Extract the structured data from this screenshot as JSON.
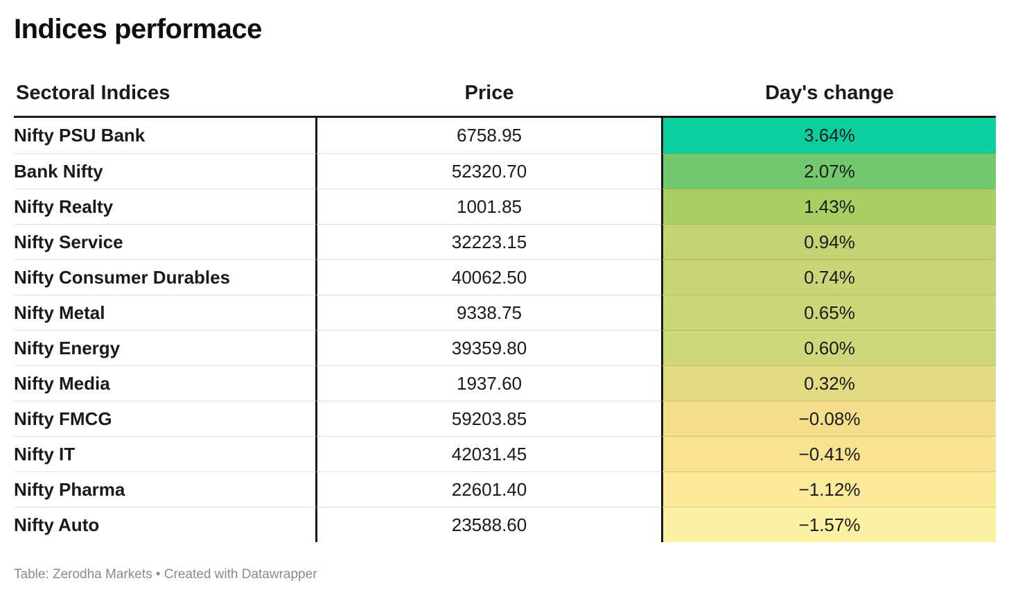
{
  "title": "Indices performace",
  "columns": {
    "sector": "Sectoral Indices",
    "price": "Price",
    "change": "Day's change"
  },
  "rows": [
    {
      "name": "Nifty PSU Bank",
      "price": "6758.95",
      "change": "3.64%",
      "color": "#0ccfa0"
    },
    {
      "name": "Bank Nifty",
      "price": "52320.70",
      "change": "2.07%",
      "color": "#74c86e"
    },
    {
      "name": "Nifty Realty",
      "price": "1001.85",
      "change": "1.43%",
      "color": "#a9cf62"
    },
    {
      "name": "Nifty Service",
      "price": "32223.15",
      "change": "0.94%",
      "color": "#c3d373"
    },
    {
      "name": "Nifty Consumer Durables",
      "price": "40062.50",
      "change": "0.74%",
      "color": "#c9d577"
    },
    {
      "name": "Nifty Metal",
      "price": "9338.75",
      "change": "0.65%",
      "color": "#cdd679"
    },
    {
      "name": "Nifty Energy",
      "price": "39359.80",
      "change": "0.60%",
      "color": "#cfd77b"
    },
    {
      "name": "Nifty Media",
      "price": "1937.60",
      "change": "0.32%",
      "color": "#e2db84"
    },
    {
      "name": "Nifty FMCG",
      "price": "59203.85",
      "change": "−0.08%",
      "color": "#f3de8b"
    },
    {
      "name": "Nifty IT",
      "price": "42031.45",
      "change": "−0.41%",
      "color": "#f7e391"
    },
    {
      "name": "Nifty Pharma",
      "price": "22601.40",
      "change": "−1.12%",
      "color": "#faea9a"
    },
    {
      "name": "Nifty Auto",
      "price": "23588.60",
      "change": "−1.57%",
      "color": "#fcf1a2"
    }
  ],
  "footer": "Table: Zerodha Markets • Created with Datawrapper",
  "colors": {
    "header_border": "#191919",
    "row_divider": "#e2e2e2",
    "footer_text": "#8a8a8a",
    "scale_max_positive": "#0ccfa0",
    "scale_min_negative": "#fcf1a2"
  },
  "chart_data": {
    "type": "table",
    "title": "Indices performace",
    "categories": [
      "Nifty PSU Bank",
      "Bank Nifty",
      "Nifty Realty",
      "Nifty Service",
      "Nifty Consumer Durables",
      "Nifty Metal",
      "Nifty Energy",
      "Nifty Media",
      "Nifty FMCG",
      "Nifty IT",
      "Nifty Pharma",
      "Nifty Auto"
    ],
    "series": [
      {
        "name": "Price",
        "values": [
          6758.95,
          52320.7,
          1001.85,
          32223.15,
          40062.5,
          9338.75,
          39359.8,
          1937.6,
          59203.85,
          42031.45,
          22601.4,
          23588.6
        ]
      },
      {
        "name": "Day's change (%)",
        "values": [
          3.64,
          2.07,
          1.43,
          0.94,
          0.74,
          0.65,
          0.6,
          0.32,
          -0.08,
          -0.41,
          -1.12,
          -1.57
        ]
      }
    ],
    "layout_hints": {
      "heatmap_column": "Day's change (%)",
      "heatmap_scale": "green (high positive) to pale yellow (negative)",
      "sorted_by": "Day's change descending"
    }
  }
}
